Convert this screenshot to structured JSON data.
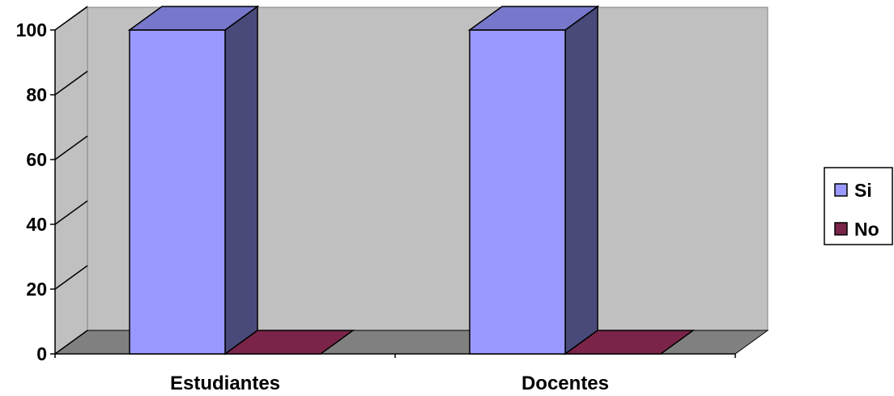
{
  "chart_data": {
    "type": "bar",
    "style": "3d-clustered-column",
    "categories": [
      "Estudiantes",
      "Docentes"
    ],
    "series": [
      {
        "name": "Si",
        "values": [
          100,
          100
        ],
        "color": "#9999FF",
        "side_color": "#4A4A7A",
        "top_color": "#7777CC"
      },
      {
        "name": "No",
        "values": [
          0,
          0
        ],
        "color": "#7A2449",
        "side_color": "#4E1630",
        "top_color": "#7A2449"
      }
    ],
    "ylim": [
      0,
      100
    ],
    "yticks": [
      "0",
      "20",
      "40",
      "60",
      "80",
      "100"
    ],
    "grid": false,
    "legend": "right",
    "colors": {
      "back_wall": "#C0C0C0",
      "floor": "#808080",
      "edge": "#000000"
    }
  }
}
